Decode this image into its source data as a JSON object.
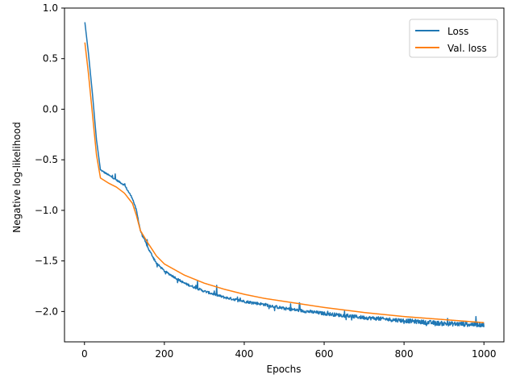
{
  "chart_data": {
    "type": "line",
    "title": "",
    "xlabel": "Epochs",
    "ylabel": "Negative log-likelihood",
    "xlim": [
      -50,
      1050
    ],
    "ylim": [
      -2.3,
      1.0
    ],
    "xticks": [
      0,
      200,
      400,
      600,
      800,
      1000
    ],
    "yticks": [
      1.0,
      0.5,
      0.0,
      -0.5,
      -1.0,
      -1.5,
      -2.0
    ],
    "xtick_labels": [
      "0",
      "200",
      "400",
      "600",
      "800",
      "1000"
    ],
    "ytick_labels": [
      "1.0",
      "0.5",
      "0.0",
      "−0.5",
      "−1.0",
      "−1.5",
      "−2.0"
    ],
    "grid": false,
    "legend_position": "top-right",
    "series": [
      {
        "name": "Loss",
        "color": "#1f77b4",
        "noisy": true,
        "x": [
          1,
          10,
          20,
          30,
          40,
          60,
          80,
          100,
          120,
          130,
          140,
          160,
          180,
          200,
          250,
          300,
          350,
          400,
          450,
          500,
          600,
          700,
          800,
          900,
          1000
        ],
        "y": [
          0.86,
          0.55,
          0.15,
          -0.3,
          -0.6,
          -0.65,
          -0.7,
          -0.75,
          -0.88,
          -1.0,
          -1.2,
          -1.38,
          -1.52,
          -1.6,
          -1.72,
          -1.8,
          -1.86,
          -1.9,
          -1.93,
          -1.97,
          -2.02,
          -2.06,
          -2.09,
          -2.12,
          -2.13
        ]
      },
      {
        "name": "Val. loss",
        "color": "#ff7f0e",
        "noisy": false,
        "x": [
          1,
          10,
          20,
          30,
          40,
          60,
          80,
          100,
          120,
          130,
          140,
          160,
          180,
          200,
          250,
          300,
          350,
          400,
          450,
          500,
          600,
          700,
          800,
          900,
          1000
        ],
        "y": [
          0.66,
          0.35,
          -0.05,
          -0.45,
          -0.68,
          -0.73,
          -0.77,
          -0.83,
          -0.93,
          -1.05,
          -1.2,
          -1.33,
          -1.45,
          -1.53,
          -1.64,
          -1.72,
          -1.78,
          -1.83,
          -1.87,
          -1.9,
          -1.96,
          -2.01,
          -2.05,
          -2.08,
          -2.11
        ]
      }
    ]
  }
}
